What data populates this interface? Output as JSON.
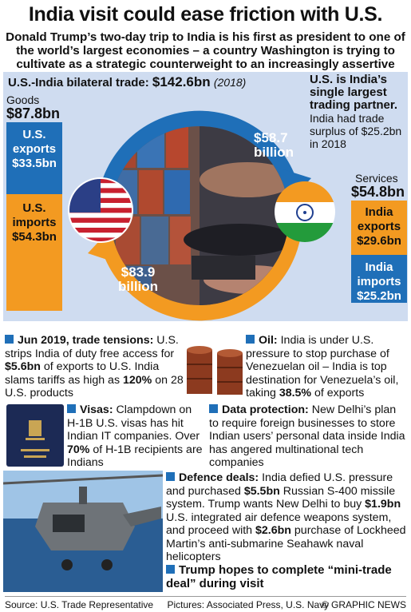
{
  "header": {
    "title": "India visit could ease friction with U.S.",
    "subtitle": "Donald Trump’s two-day trip to India is his first as president to one of the world’s largest economies – a country Washington is trying to cultivate as a strategic counterweight to an increasingly assertive China"
  },
  "trade": {
    "label_prefix": "U.S.-India bilateral trade:",
    "total": "$142.6bn",
    "year": "(2018)",
    "goods_label": "Goods",
    "goods_total": "$87.8bn",
    "us_exports_label": "U.S. exports",
    "us_exports_value": "$33.5bn",
    "us_imports_label": "U.S. imports",
    "us_imports_value": "$54.3bn",
    "services_label": "Services",
    "services_total": "$54.8bn",
    "india_exports_label": "India exports",
    "india_exports_value": "$29.6bn",
    "india_imports_label": "India imports",
    "india_imports_value": "$25.2bn",
    "arrow_top_value": "$58.7",
    "arrow_top_unit": "billion",
    "arrow_bottom_value": "$83.9",
    "arrow_bottom_unit": "billion"
  },
  "partner": {
    "heading": "U.S. is India’s single largest trading partner.",
    "text": "India had trade surplus of $25.2bn in 2018"
  },
  "sections": {
    "trade_tensions": {
      "heading": "Jun 2019, trade tensions:",
      "t1": "U.S. strips India of duty free access for",
      "v1": "$5.6bn",
      "t2": "of exports to U.S. India slams tariffs as high as",
      "v2": "120%",
      "t3": "on 28 U.S. products"
    },
    "oil": {
      "heading": "Oil:",
      "t1": "India is under U.S. pressure to stop purchase of Venezuelan oil – India is top destination for Venezuela’s oil, taking",
      "v1": "38.5%",
      "t2": "of exports"
    },
    "visas": {
      "heading": "Visas:",
      "t1": "Clampdown on H-1B U.S. visas has hit Indian IT companies. Over",
      "v1": "70%",
      "t2": "of H-1B recipients are Indians"
    },
    "data_protection": {
      "heading": "Data protection:",
      "t1": "New Delhi’s plan to require foreign businesses to store Indian users’ personal data inside India has angered multinational tech companies"
    },
    "defence": {
      "heading": "Defence deals:",
      "t1": "India defied U.S. pressure and purchased",
      "v1": "$5.5bn",
      "t2": "Russian S-400 missile system. Trump wants New Delhi to buy",
      "v2": "$1.9bn",
      "t3": "U.S. integrated air defence weapons system, and proceed with",
      "v3": "$2.6bn",
      "t4": "purchase of Lockheed Martin’s anti-submarine Seahawk naval helicopters"
    },
    "mini_deal": {
      "heading": "Trump hopes to complete “mini-trade deal” during visit"
    }
  },
  "footer": {
    "source": "Source: U.S. Trade Representative",
    "pictures": "Pictures: Associated Press, U.S. Navy",
    "credit": "© GRAPHIC NEWS"
  },
  "colors": {
    "blue": "#1f6fb8",
    "orange": "#f39a21",
    "panel": "#cfdcf0"
  }
}
